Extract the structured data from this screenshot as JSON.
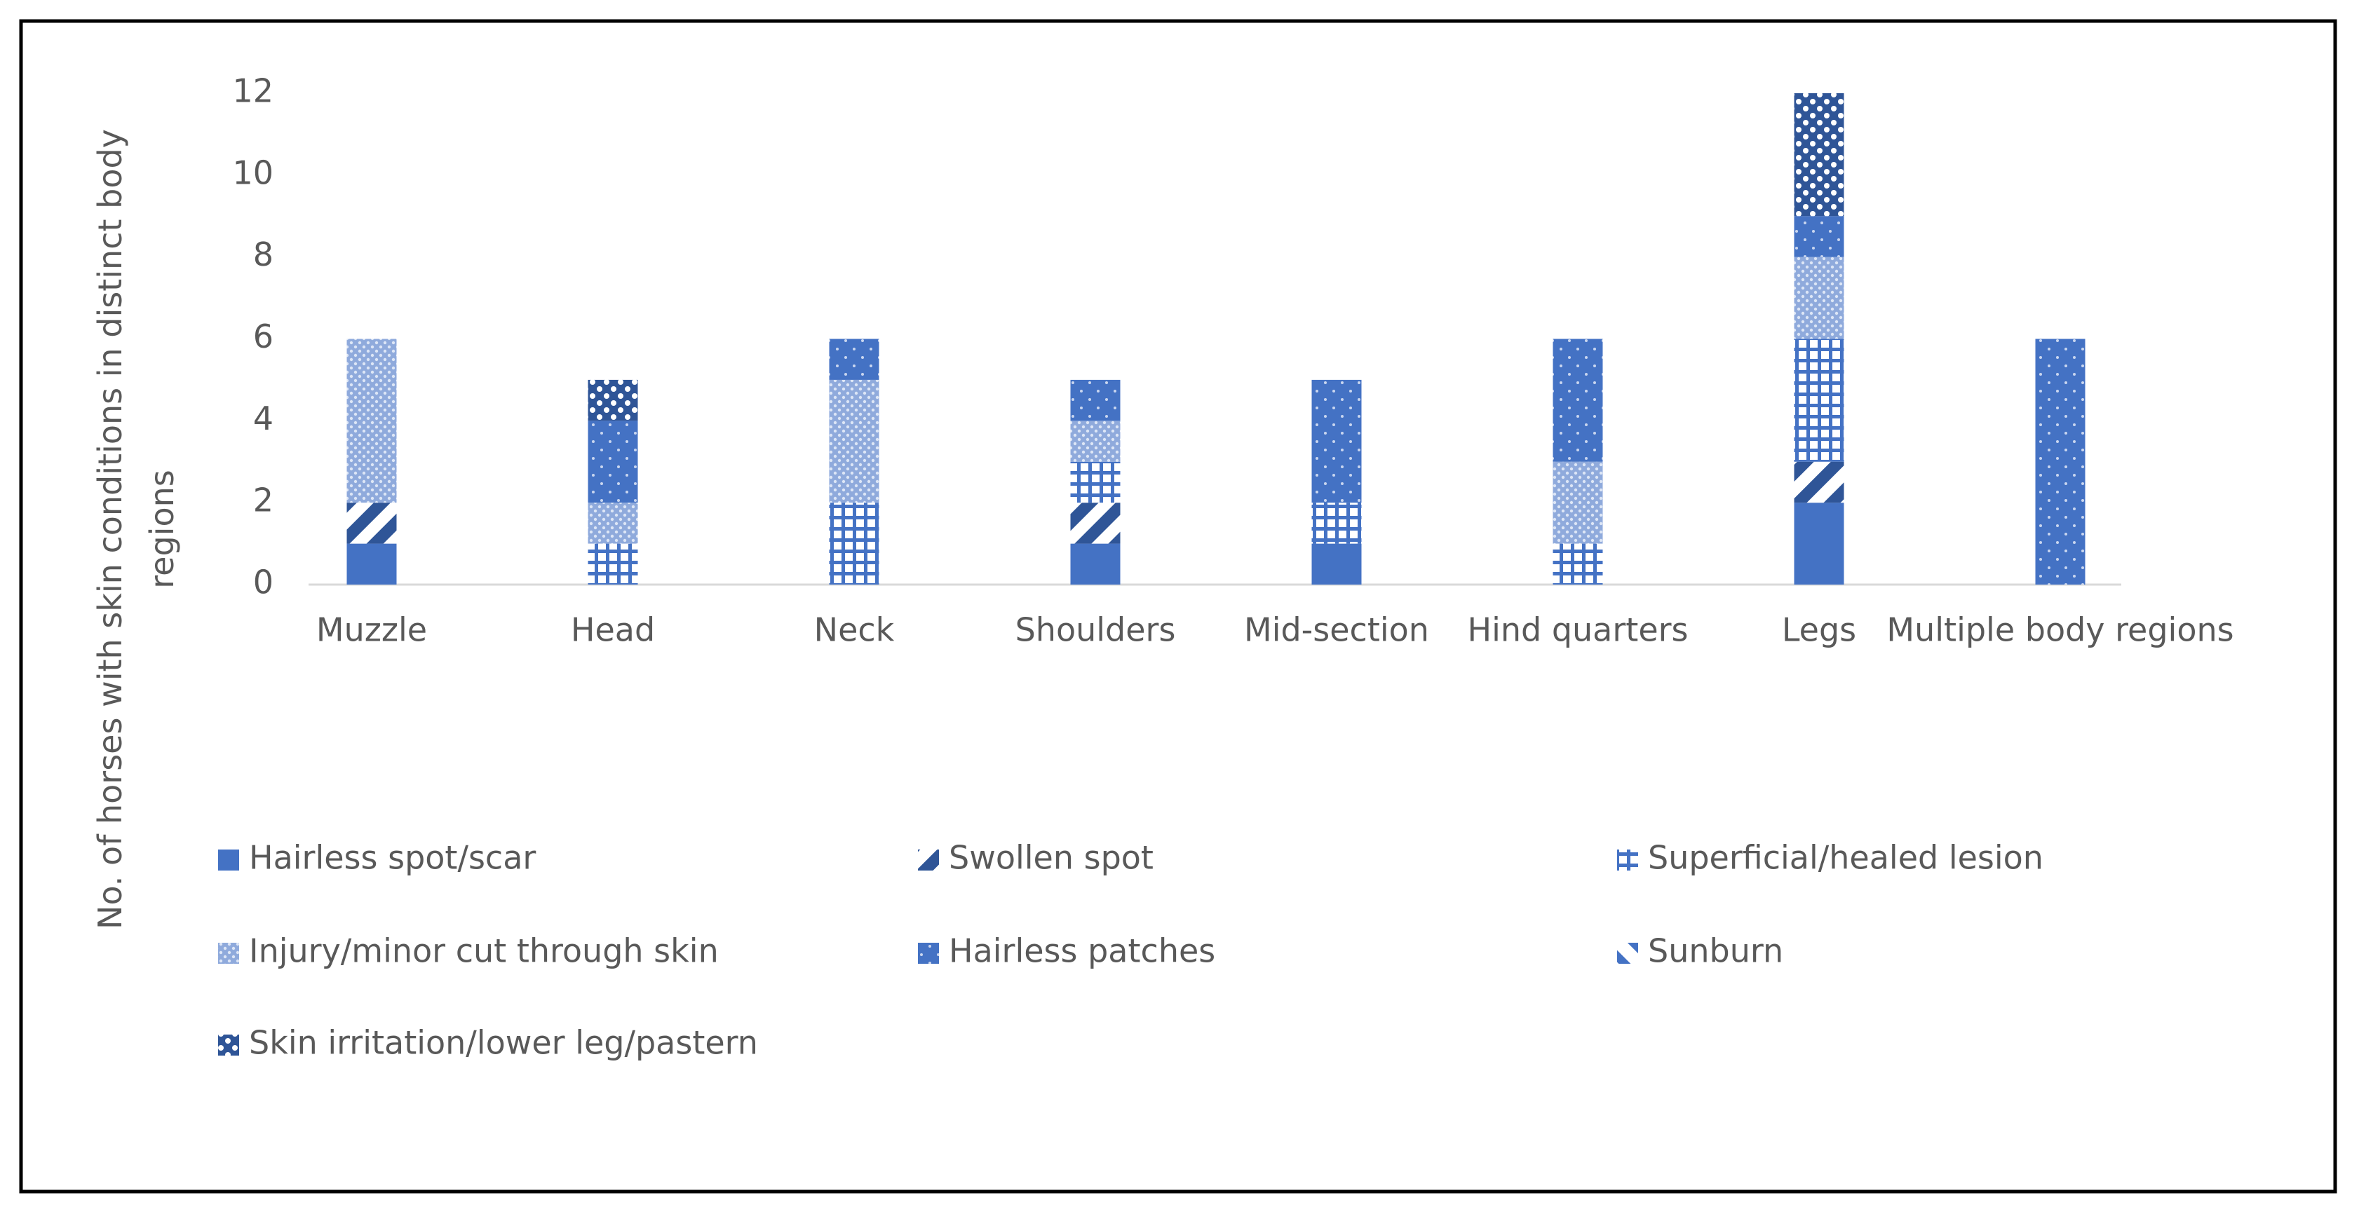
{
  "chart_data": {
    "type": "bar",
    "stacked": true,
    "y_label": "No. of horses with skin conditions in distinct body regions",
    "categories": [
      "Muzzle",
      "Head",
      "Neck",
      "Shoulders",
      "Mid-section",
      "Hind quarters",
      "Legs",
      "Multiple body regions"
    ],
    "series": [
      {
        "name": "Hairless spot/scar",
        "color": "#4472c4",
        "pattern": "solid",
        "values": [
          1,
          0,
          0,
          1,
          1,
          0,
          2,
          0
        ]
      },
      {
        "name": "Swollen spot",
        "color": "#4472c4",
        "pattern": "diagonal",
        "values": [
          1,
          0,
          0,
          1,
          0,
          0,
          1,
          0
        ]
      },
      {
        "name": "Superficial/healed lesion",
        "color": "#4472c4",
        "pattern": "grid",
        "values": [
          0,
          1,
          2,
          1,
          1,
          1,
          3,
          0
        ]
      },
      {
        "name": "Injury/minor cut through skin",
        "color": "#8faadc",
        "pattern": "dots",
        "values": [
          4,
          1,
          3,
          1,
          0,
          2,
          2,
          0
        ]
      },
      {
        "name": "Hairless patches",
        "color": "#4472c4",
        "pattern": "sparse-dots",
        "values": [
          0,
          2,
          1,
          1,
          3,
          3,
          1,
          6
        ]
      },
      {
        "name": "Sunburn",
        "color": "#4472c4",
        "pattern": "wide-diagonal",
        "values": [
          0,
          0,
          0,
          0,
          0,
          0,
          0,
          0
        ]
      },
      {
        "name": "Skin irritation/lower leg/pastern",
        "color": "#2f5597",
        "pattern": "checker",
        "values": [
          0,
          1,
          0,
          0,
          0,
          0,
          3,
          0
        ]
      }
    ],
    "ylim": [
      0,
      12
    ],
    "yticks": [
      0,
      2,
      4,
      6,
      8,
      10,
      12
    ],
    "grid": false,
    "legend": "bottom"
  }
}
